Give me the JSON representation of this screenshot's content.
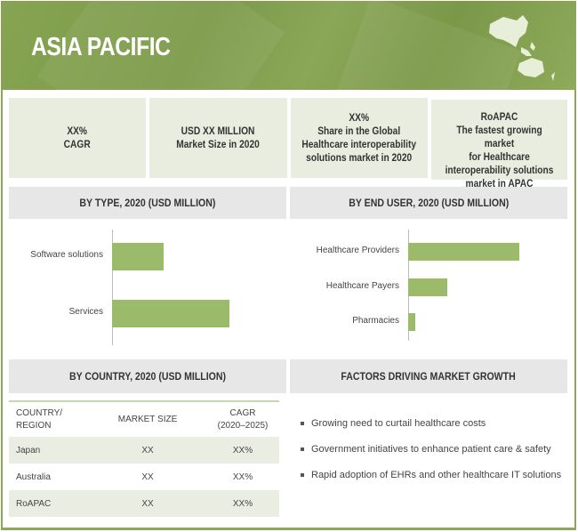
{
  "header": {
    "title": "ASIA PACIFIC"
  },
  "colors": {
    "accent": "#7b9a48",
    "bar": "#9bba6a",
    "panel": "#e9ede0",
    "section": "#e7e7e7"
  },
  "cards": [
    {
      "lines": [
        "XX%",
        "CAGR"
      ]
    },
    {
      "lines": [
        "USD XX MILLION",
        "Market Size in 2020"
      ]
    },
    {
      "lines": [
        "XX%",
        "Share in the Global",
        "Healthcare interoperability",
        "solutions market in 2020"
      ]
    },
    {
      "lines": [
        "RoAPAC",
        "The fastest growing market",
        "for Healthcare",
        "interoperability solutions",
        "market in APAC"
      ]
    }
  ],
  "sections": {
    "by_type": "BY TYPE, 2020 (USD MILLION)",
    "by_end_user": "BY END USER, 2020 (USD MILLION)",
    "by_country": "BY COUNTRY, 2020 (USD MILLION)",
    "factors": "FACTORS DRIVING MARKET GROWTH"
  },
  "chart_data": [
    {
      "type": "bar",
      "orientation": "horizontal",
      "categories": [
        "Software solutions",
        "Services"
      ],
      "values": [
        44,
        100
      ],
      "title": "BY TYPE, 2020 (USD MILLION)"
    },
    {
      "type": "bar",
      "orientation": "horizontal",
      "categories": [
        "Healthcare Providers",
        "Healthcare Payers",
        "Pharmacies"
      ],
      "values": [
        100,
        35,
        6
      ],
      "title": "BY END USER, 2020 (USD MILLION)"
    }
  ],
  "country_table": {
    "headers": [
      "COUNTRY/ REGION",
      "MARKET SIZE",
      "CAGR (2020–2025)"
    ],
    "rows": [
      [
        "Japan",
        "XX",
        "XX%"
      ],
      [
        "Australia",
        "XX",
        "XX%"
      ],
      [
        "RoAPAC",
        "XX",
        "XX%"
      ]
    ]
  },
  "factors": [
    "Growing need to curtail healthcare costs",
    "Government initiatives to enhance patient care & safety",
    "Rapid adoption of EHRs and other healthcare IT solutions"
  ]
}
